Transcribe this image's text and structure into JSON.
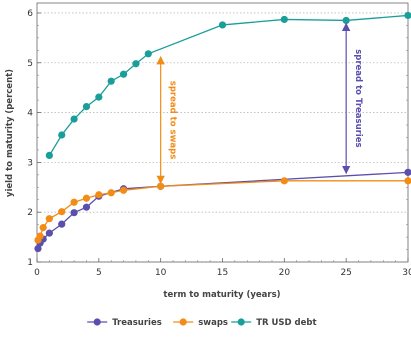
{
  "chart_data": {
    "type": "line",
    "title": "",
    "xlabel": "term to maturity (years)",
    "ylabel": "yield to maturity (percent)",
    "xlim": [
      0,
      30
    ],
    "ylim": [
      1,
      6.2
    ],
    "x_ticks": [
      0,
      5,
      10,
      15,
      20,
      25,
      30
    ],
    "y_ticks": [
      1,
      2,
      3,
      4,
      5,
      6
    ],
    "grid": "horizontal dotted",
    "legend_position": "bottom-center",
    "series": [
      {
        "name": "Treasuries",
        "color": "#5b4fad",
        "points": [
          [
            0.08,
            1.27
          ],
          [
            0.25,
            1.38
          ],
          [
            0.5,
            1.46
          ],
          [
            1,
            1.58
          ],
          [
            2,
            1.76
          ],
          [
            3,
            1.99
          ],
          [
            4,
            2.1
          ],
          [
            5,
            2.32
          ],
          [
            7,
            2.47
          ],
          [
            10,
            2.52
          ],
          [
            30,
            2.8
          ]
        ]
      },
      {
        "name": "swaps",
        "color": "#f28c17",
        "points": [
          [
            0.08,
            1.44
          ],
          [
            0.25,
            1.52
          ],
          [
            0.5,
            1.69
          ],
          [
            1,
            1.87
          ],
          [
            2,
            2.01
          ],
          [
            3,
            2.2
          ],
          [
            4,
            2.28
          ],
          [
            5,
            2.35
          ],
          [
            6,
            2.39
          ],
          [
            7,
            2.44
          ],
          [
            10,
            2.52
          ],
          [
            20,
            2.63
          ],
          [
            30,
            2.63
          ]
        ]
      },
      {
        "name": "TR USD debt",
        "color": "#1a9e9a",
        "points": [
          [
            1,
            3.14
          ],
          [
            2,
            3.55
          ],
          [
            3,
            3.87
          ],
          [
            4,
            4.12
          ],
          [
            5,
            4.31
          ],
          [
            6,
            4.63
          ],
          [
            7,
            4.77
          ],
          [
            8,
            4.98
          ],
          [
            9,
            5.18
          ],
          [
            15,
            5.76
          ],
          [
            20,
            5.87
          ],
          [
            25,
            5.85
          ],
          [
            30,
            5.95
          ]
        ]
      }
    ],
    "annotations": [
      {
        "text": "spread to swaps",
        "color": "#f28c17",
        "x": 10,
        "y_from": 2.52,
        "y_to": 5.18
      },
      {
        "text": "spread to Treasuries",
        "color": "#5b4fad",
        "x": 25,
        "y_from": 2.72,
        "y_to": 5.85
      }
    ]
  }
}
